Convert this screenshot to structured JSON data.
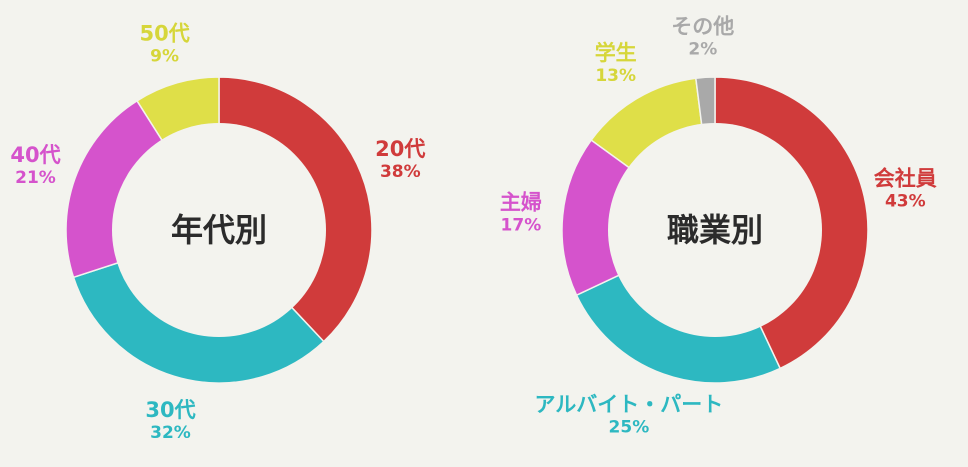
{
  "chart_data": [
    {
      "type": "pie",
      "title": "年代別",
      "slices": [
        {
          "label": "20代",
          "value": 38,
          "pct_text": "38%",
          "color": "#d03b3b"
        },
        {
          "label": "30代",
          "value": 32,
          "pct_text": "32%",
          "color": "#2db8c1"
        },
        {
          "label": "40代",
          "value": 21,
          "pct_text": "21%",
          "color": "#d553cc"
        },
        {
          "label": "50代",
          "value": 9,
          "pct_text": "9%",
          "color": "#dfdf48"
        }
      ]
    },
    {
      "type": "pie",
      "title": "職業別",
      "slices": [
        {
          "label": "会社員",
          "value": 43,
          "pct_text": "43%",
          "color": "#d03b3b"
        },
        {
          "label": "アルバイト・パート",
          "value": 25,
          "pct_text": "25%",
          "color": "#2db8c1"
        },
        {
          "label": "主婦",
          "value": 17,
          "pct_text": "17%",
          "color": "#d553cc"
        },
        {
          "label": "学生",
          "value": 13,
          "pct_text": "13%",
          "color": "#dfdf48"
        },
        {
          "label": "その他",
          "value": 2,
          "pct_text": "2%",
          "color": "#a9a9a9"
        }
      ]
    }
  ]
}
